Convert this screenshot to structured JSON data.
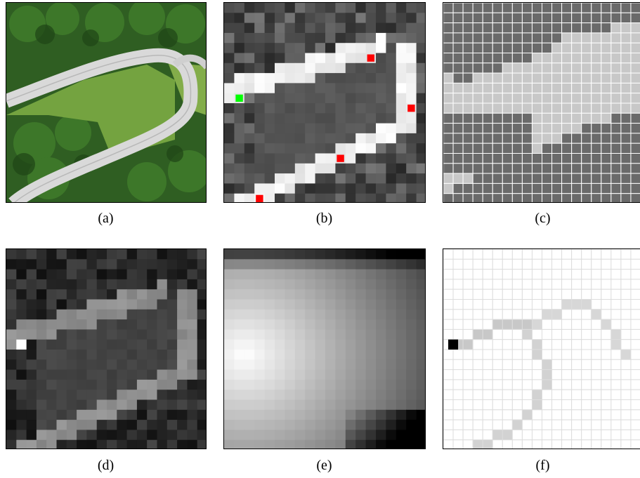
{
  "captions": [
    "(a)",
    "(b)",
    "(c)",
    "(d)",
    "(e)",
    "(f)"
  ],
  "palette": {
    "road": "#dcdcdc",
    "grass": "#6f9a3c",
    "forest": "#2d5a1f",
    "red_marker": "#ff0000",
    "green_marker": "#00ff00",
    "class_dark": "#6a6a6a",
    "class_light": "#c8c8c8"
  },
  "icons": {
    "a": "aerial-photo",
    "b": "grayscale-grid-with-markers",
    "c": "two-class-grid",
    "d": "grayscale-cost-grid",
    "e": "blurred-distance-map",
    "f": "path-accumulation-grid"
  }
}
